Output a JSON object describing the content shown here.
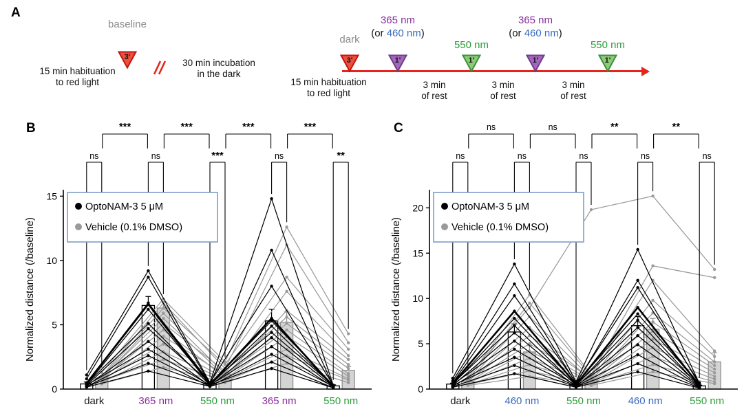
{
  "colors": {
    "red": "#E5251B",
    "purple": "#8B2FA0",
    "blue": "#3A6BBE",
    "green": "#2E9E3A",
    "gray_text": "#8A8A8A",
    "legend_border": "#7F9DC9",
    "optonam": "#000000",
    "vehicle": "#9A9A9A"
  },
  "figure": {
    "panel_a": {
      "label": "A",
      "baseline": {
        "title": "baseline",
        "marker": "3'"
      },
      "habituation1": [
        "15 min habituation",
        "to red light"
      ],
      "incubation": [
        "30 min incubation",
        "in the dark"
      ],
      "dark": {
        "title": "dark",
        "marker": "3'"
      },
      "habituation2": [
        "15 min habituation",
        "to red light"
      ],
      "stims": [
        {
          "title": "365 nm",
          "alt_prefix": "(or ",
          "alt": "460 nm",
          "alt_suffix": ")",
          "marker": "1'"
        },
        {
          "title": "550 nm",
          "marker": "1'"
        },
        {
          "title": "365 nm",
          "alt_prefix": "(or ",
          "alt": "460 nm",
          "alt_suffix": ")",
          "marker": "1'"
        },
        {
          "title": "550 nm",
          "marker": "1'"
        }
      ],
      "rest": [
        "3 min",
        "of rest"
      ]
    }
  },
  "chart_data": [
    {
      "type": "line",
      "panel_label": "B",
      "categories": [
        "dark",
        "365 nm",
        "550 nm",
        "365 nm",
        "550 nm"
      ],
      "category_colors": [
        "#1a1a1a",
        "#8B2FA0",
        "#2E9E3A",
        "#8B2FA0",
        "#2E9E3A"
      ],
      "ylabel": "Normalized distance (/baseline)",
      "ylim": [
        0,
        15.5
      ],
      "yticks": [
        0,
        5,
        10,
        15
      ],
      "legend_border": "#7F9DC9",
      "legend_position": "upper-left",
      "grid": false,
      "groups": [
        {
          "name": "OptoNAM-3 5 μM",
          "color": "#000000",
          "bar_fill": "#ffffff",
          "bar_stroke": "#000000",
          "means": [
            0.4,
            6.5,
            0.45,
            5.3,
            0.25
          ],
          "sem": [
            0.15,
            0.7,
            0.1,
            0.9,
            0.08
          ],
          "individuals": [
            [
              1.1,
              9.2,
              0.5,
              14.8,
              0.3
            ],
            [
              0.8,
              8.7,
              0.4,
              10.8,
              0.25
            ],
            [
              0.5,
              6.7,
              0.5,
              8.0,
              0.3
            ],
            [
              0.45,
              6.6,
              0.35,
              5.5,
              0.2
            ],
            [
              0.35,
              6.2,
              0.4,
              5.3,
              0.3
            ],
            [
              0.4,
              5.1,
              0.3,
              4.9,
              0.25
            ],
            [
              0.3,
              4.7,
              0.5,
              4.4,
              0.3
            ],
            [
              0.25,
              3.7,
              0.25,
              4.0,
              0.2
            ],
            [
              0.3,
              3.1,
              0.3,
              3.3,
              0.15
            ],
            [
              0.2,
              2.6,
              0.2,
              2.7,
              0.2
            ],
            [
              0.2,
              2.0,
              0.3,
              2.1,
              0.1
            ],
            [
              0.15,
              1.4,
              0.2,
              1.6,
              0.1
            ]
          ]
        },
        {
          "name": "Vehicle (0.1% DMSO)",
          "color": "#9a9a9a",
          "bar_fill": "#d4d4d4",
          "bar_stroke": "#8f8f8f",
          "means": [
            0.85,
            6.3,
            1.15,
            5.2,
            1.45
          ],
          "sem": [
            0.12,
            0.5,
            0.15,
            0.8,
            0.3
          ],
          "individuals": [
            [
              1.3,
              7.0,
              2.1,
              12.6,
              4.3
            ],
            [
              1.0,
              6.7,
              1.6,
              11.2,
              3.6
            ],
            [
              0.9,
              6.3,
              1.9,
              8.7,
              3.1
            ],
            [
              0.8,
              5.9,
              1.2,
              7.6,
              2.6
            ],
            [
              0.9,
              5.5,
              1.0,
              6.1,
              2.3
            ],
            [
              0.7,
              5.1,
              1.4,
              5.6,
              1.9
            ],
            [
              0.8,
              4.6,
              0.9,
              5.1,
              1.6
            ],
            [
              0.6,
              4.1,
              1.1,
              4.6,
              1.2
            ],
            [
              0.7,
              3.5,
              0.8,
              4.1,
              1.0
            ],
            [
              0.5,
              2.9,
              0.7,
              3.1,
              0.8
            ],
            [
              0.6,
              2.3,
              0.6,
              2.6,
              0.7
            ],
            [
              0.4,
              1.7,
              0.5,
              2.0,
              0.5
            ]
          ]
        }
      ],
      "significance_top": [
        {
          "from": 0,
          "to": 1,
          "label": "***"
        },
        {
          "from": 1,
          "to": 2,
          "label": "***"
        },
        {
          "from": 2,
          "to": 3,
          "label": "***"
        },
        {
          "from": 3,
          "to": 4,
          "label": "***"
        }
      ],
      "significance_within": [
        {
          "cat": 0,
          "label": "ns"
        },
        {
          "cat": 1,
          "label": "ns"
        },
        {
          "cat": 2,
          "label": "***"
        },
        {
          "cat": 3,
          "label": "ns"
        },
        {
          "cat": 4,
          "label": "**"
        }
      ]
    },
    {
      "type": "line",
      "panel_label": "C",
      "categories": [
        "dark",
        "460 nm",
        "550 nm",
        "460 nm",
        "550 nm"
      ],
      "category_colors": [
        "#1a1a1a",
        "#3A6BBE",
        "#2E9E3A",
        "#3A6BBE",
        "#2E9E3A"
      ],
      "ylabel": "Normalized distance (/baseline)",
      "ylim": [
        0,
        22
      ],
      "yticks": [
        0,
        5,
        10,
        15,
        20
      ],
      "legend_border": "#7F9DC9",
      "legend_position": "upper-left",
      "grid": false,
      "groups": [
        {
          "name": "OptoNAM-3 5 μM",
          "color": "#000000",
          "bar_fill": "#ffffff",
          "bar_stroke": "#000000",
          "means": [
            0.55,
            6.3,
            0.5,
            7.0,
            0.35
          ],
          "sem": [
            0.1,
            0.9,
            0.08,
            1.0,
            0.08
          ],
          "individuals": [
            [
              1.2,
              13.8,
              0.8,
              15.4,
              0.6
            ],
            [
              0.9,
              11.6,
              0.6,
              12.0,
              0.5
            ],
            [
              0.7,
              10.3,
              0.7,
              11.2,
              0.7
            ],
            [
              0.6,
              8.6,
              0.5,
              9.0,
              0.4
            ],
            [
              0.5,
              7.8,
              0.6,
              8.3,
              0.5
            ],
            [
              0.6,
              7.0,
              0.4,
              7.6,
              0.3
            ],
            [
              0.4,
              6.2,
              0.5,
              6.8,
              0.4
            ],
            [
              0.5,
              5.3,
              0.3,
              5.9,
              0.3
            ],
            [
              0.3,
              4.4,
              0.4,
              4.9,
              0.25
            ],
            [
              0.4,
              3.5,
              0.3,
              3.8,
              0.2
            ],
            [
              0.25,
              2.6,
              0.25,
              2.8,
              0.15
            ],
            [
              0.2,
              1.7,
              0.2,
              1.9,
              0.1
            ]
          ]
        },
        {
          "name": "Vehicle (0.1% DMSO)",
          "color": "#9a9a9a",
          "bar_fill": "#d4d4d4",
          "bar_stroke": "#8f8f8f",
          "means": [
            0.8,
            4.1,
            1.0,
            6.6,
            3.0
          ],
          "sem": [
            0.12,
            0.7,
            0.2,
            1.2,
            1.0
          ],
          "individuals": [
            [
              1.5,
              9.0,
              19.8,
              21.3,
              13.2
            ],
            [
              1.2,
              10.4,
              1.6,
              13.6,
              12.3
            ],
            [
              1.0,
              9.5,
              1.4,
              12.0,
              4.2
            ],
            [
              0.9,
              8.0,
              1.2,
              9.8,
              3.6
            ],
            [
              0.8,
              6.8,
              1.0,
              8.4,
              3.0
            ],
            [
              0.9,
              5.9,
              1.1,
              7.4,
              2.6
            ],
            [
              0.7,
              5.0,
              0.9,
              6.4,
              2.2
            ],
            [
              0.6,
              4.2,
              0.8,
              5.5,
              1.8
            ],
            [
              0.7,
              3.4,
              0.7,
              4.6,
              1.4
            ],
            [
              0.5,
              2.7,
              0.6,
              3.6,
              1.1
            ],
            [
              0.5,
              2.0,
              0.5,
              2.7,
              0.8
            ],
            [
              0.4,
              1.4,
              0.4,
              1.9,
              0.6
            ]
          ]
        }
      ],
      "significance_top": [
        {
          "from": 0,
          "to": 1,
          "label": "ns"
        },
        {
          "from": 1,
          "to": 2,
          "label": "ns"
        },
        {
          "from": 2,
          "to": 3,
          "label": "**"
        },
        {
          "from": 3,
          "to": 4,
          "label": "**"
        }
      ],
      "significance_within": [
        {
          "cat": 0,
          "label": "ns"
        },
        {
          "cat": 1,
          "label": "ns"
        },
        {
          "cat": 2,
          "label": "ns"
        },
        {
          "cat": 3,
          "label": "ns"
        },
        {
          "cat": 4,
          "label": "ns"
        }
      ]
    }
  ]
}
